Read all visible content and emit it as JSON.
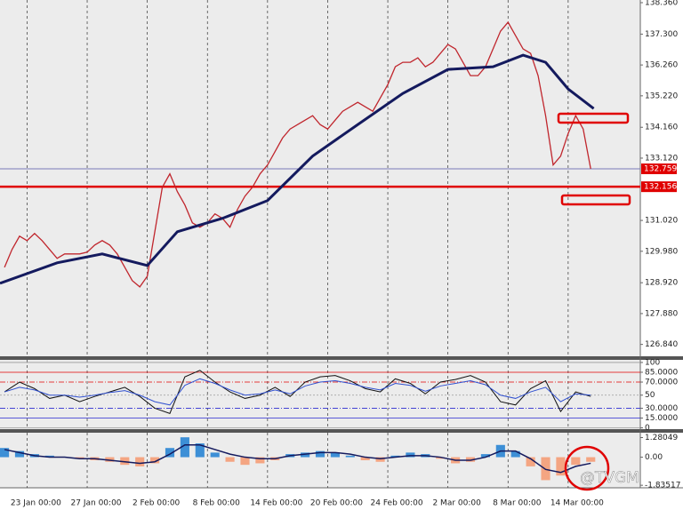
{
  "chart_data": [
    {
      "type": "line",
      "xlim": [
        -1.8,
        40.8
      ],
      "xticks": [
        {
          "value": 0,
          "label": "23 Jan 00:00"
        },
        {
          "value": 4,
          "label": "27 Jan 00:00"
        },
        {
          "value": 8,
          "label": "2 Feb 00:00"
        },
        {
          "value": 12,
          "label": "8 Feb 00:00"
        },
        {
          "value": 16,
          "label": "14 Feb 00:00"
        },
        {
          "value": 20,
          "label": "20 Feb 00:00"
        },
        {
          "value": 24,
          "label": "24 Feb 00:00"
        },
        {
          "value": 28,
          "label": "2 Mar 00:00"
        },
        {
          "value": 32,
          "label": "8 Mar 00:00"
        },
        {
          "value": 36,
          "label": "14 Mar 00:00"
        }
      ],
      "ylim": [
        126.44,
        138.45
      ],
      "yticks": [
        {
          "value": 138.36,
          "label": "138.360"
        },
        {
          "value": 137.3,
          "label": "137.300"
        },
        {
          "value": 136.26,
          "label": "136.260"
        },
        {
          "value": 135.22,
          "label": "135.220"
        },
        {
          "value": 134.16,
          "label": "134.160"
        },
        {
          "value": 133.12,
          "label": "133.120"
        },
        {
          "value": 131.02,
          "label": "131.020"
        },
        {
          "value": 129.98,
          "label": "129.980"
        },
        {
          "value": 128.92,
          "label": "128.920"
        },
        {
          "value": 127.88,
          "label": "127.880"
        },
        {
          "value": 126.84,
          "label": "126.840"
        }
      ],
      "levels": [
        132.759,
        132.156
      ],
      "level_colors": [
        "#7a7ab8",
        "#e00000"
      ],
      "series": [
        {
          "color": "#c0262d",
          "x": [
            -1.5,
            -1,
            -0.5,
            0,
            0.5,
            1,
            1.5,
            2,
            2.5,
            3,
            3.5,
            4,
            4.5,
            5,
            5.5,
            6,
            6.5,
            7,
            7.5,
            8,
            8.5,
            9,
            9.5,
            10,
            10.5,
            11,
            11.5,
            12,
            12.5,
            13,
            13.5,
            14,
            14.5,
            15,
            15.5,
            16,
            16.5,
            17,
            17.5,
            18,
            18.5,
            19,
            19.5,
            20,
            20.5,
            21,
            21.5,
            22,
            22.5,
            23,
            23.5,
            24,
            24.5,
            25,
            25.5,
            26,
            26.5,
            27,
            27.5,
            28,
            28.5,
            29,
            29.5,
            30,
            30.5,
            31,
            31.5,
            32,
            32.5,
            33,
            33.5,
            34,
            34.5,
            35,
            35.5,
            36,
            36.5,
            37,
            37.5
          ],
          "values": [
            129.44,
            130.04,
            130.49,
            130.34,
            130.58,
            130.34,
            130.04,
            129.74,
            129.89,
            129.89,
            129.89,
            129.95,
            130.19,
            130.34,
            130.19,
            129.89,
            129.44,
            128.99,
            128.78,
            129.14,
            130.64,
            132.14,
            132.59,
            131.99,
            131.54,
            130.94,
            130.79,
            130.94,
            131.24,
            131.09,
            130.79,
            131.39,
            131.84,
            132.14,
            132.59,
            132.89,
            133.34,
            133.8,
            134.1,
            134.25,
            134.4,
            134.55,
            134.25,
            134.1,
            134.4,
            134.7,
            134.85,
            135.0,
            134.85,
            134.7,
            135.15,
            135.6,
            136.2,
            136.35,
            136.35,
            136.5,
            136.2,
            136.35,
            136.65,
            136.95,
            136.8,
            136.35,
            135.9,
            135.9,
            136.2,
            136.8,
            137.4,
            137.7,
            137.25,
            136.8,
            136.65,
            135.9,
            134.55,
            132.89,
            133.19,
            133.95,
            134.55,
            134.1,
            132.759
          ]
        },
        {
          "color": "#141a5e",
          "x": [
            -1.8,
            2,
            5,
            8,
            10,
            13,
            16,
            19,
            22,
            25,
            28,
            31,
            33,
            34.5,
            36,
            37.7
          ],
          "values": [
            128.9,
            129.59,
            129.89,
            129.5,
            130.64,
            131.09,
            131.69,
            133.19,
            134.25,
            135.3,
            136.11,
            136.2,
            136.59,
            136.35,
            135.45,
            134.79
          ]
        }
      ]
    },
    {
      "type": "line",
      "ylim": [
        -2,
        104
      ],
      "yticks": [
        100,
        {
          "value": 85,
          "label": "85.0000"
        },
        {
          "value": 70,
          "label": "70.0000"
        },
        50,
        {
          "value": 30,
          "label": "30.0000"
        },
        {
          "value": 15,
          "label": "15.0000"
        },
        0
      ],
      "tick_line_colors": [
        "#9a9a9a",
        "#e00000",
        "#e00000",
        "#9a9a9a",
        "#2a2ad0",
        "#2a2ad0",
        "#9a9a9a"
      ],
      "x": [
        -1.5,
        -0.5,
        0.5,
        1.5,
        2.5,
        3.5,
        4.5,
        5.5,
        6.5,
        7.5,
        8.5,
        9.5,
        10.5,
        11.5,
        12.5,
        13.5,
        14.5,
        15.5,
        16.5,
        17.5,
        18.5,
        19.5,
        20.5,
        21.5,
        22.5,
        23.5,
        24.5,
        25.5,
        26.5,
        27.5,
        28.5,
        29.5,
        30.5,
        31.5,
        32.5,
        33.5,
        34.5,
        35.5,
        36.5,
        37.5
      ],
      "series": [
        {
          "color": "#111111",
          "values": [
            55,
            70,
            60,
            45,
            50,
            40,
            48,
            55,
            62,
            48,
            30,
            22,
            78,
            88,
            70,
            55,
            45,
            50,
            62,
            48,
            70,
            78,
            80,
            72,
            60,
            55,
            75,
            68,
            52,
            70,
            74,
            80,
            70,
            40,
            35,
            60,
            72,
            25,
            55,
            48
          ]
        },
        {
          "color": "#3050d0",
          "values": [
            55,
            62,
            58,
            50,
            50,
            47,
            50,
            54,
            57,
            50,
            40,
            35,
            65,
            75,
            68,
            58,
            50,
            52,
            58,
            52,
            64,
            70,
            72,
            68,
            62,
            58,
            68,
            65,
            56,
            64,
            68,
            72,
            66,
            50,
            45,
            55,
            62,
            40,
            52,
            50
          ]
        }
      ]
    },
    {
      "type": "bar",
      "ylim": [
        -2.0,
        1.6
      ],
      "yticks": [
        {
          "value": 1.28049,
          "label": "1.28049"
        },
        {
          "value": 0,
          "label": "0.00"
        },
        -1.83517
      ],
      "positive_color": "#3d8fd6",
      "negative_color": "#f4a582",
      "x": [
        -1.5,
        -0.5,
        0.5,
        1.5,
        2.5,
        3.5,
        4.5,
        5.5,
        6.5,
        7.5,
        8.5,
        9.5,
        10.5,
        11.5,
        12.5,
        13.5,
        14.5,
        15.5,
        16.5,
        17.5,
        18.5,
        19.5,
        20.5,
        21.5,
        22.5,
        23.5,
        24.5,
        25.5,
        26.5,
        27.5,
        28.5,
        29.5,
        30.5,
        31.5,
        32.5,
        33.5,
        34.5,
        35.5,
        36.5,
        37.5
      ],
      "values": [
        0.6,
        0.4,
        0.2,
        0.1,
        0.0,
        -0.1,
        -0.2,
        -0.3,
        -0.5,
        -0.6,
        -0.4,
        0.6,
        1.3,
        0.9,
        0.3,
        -0.3,
        -0.5,
        -0.4,
        -0.2,
        0.2,
        0.3,
        0.4,
        0.3,
        0.1,
        -0.2,
        -0.3,
        0.1,
        0.3,
        0.2,
        -0.1,
        -0.4,
        -0.3,
        0.2,
        0.8,
        0.4,
        -0.6,
        -1.5,
        -1.2,
        -0.5,
        -0.3
      ],
      "series": [
        {
          "color": "#141a5e",
          "values": [
            0.5,
            0.3,
            0.1,
            0.0,
            0.0,
            -0.1,
            -0.1,
            -0.2,
            -0.3,
            -0.4,
            -0.3,
            0.2,
            0.8,
            0.8,
            0.5,
            0.2,
            0.0,
            -0.1,
            -0.1,
            0.1,
            0.2,
            0.3,
            0.3,
            0.2,
            0.0,
            -0.1,
            0.0,
            0.1,
            0.1,
            0.0,
            -0.2,
            -0.2,
            0.0,
            0.4,
            0.4,
            -0.1,
            -0.8,
            -1.0,
            -0.6,
            -0.4
          ]
        }
      ]
    }
  ],
  "watermark": "@TVGM"
}
